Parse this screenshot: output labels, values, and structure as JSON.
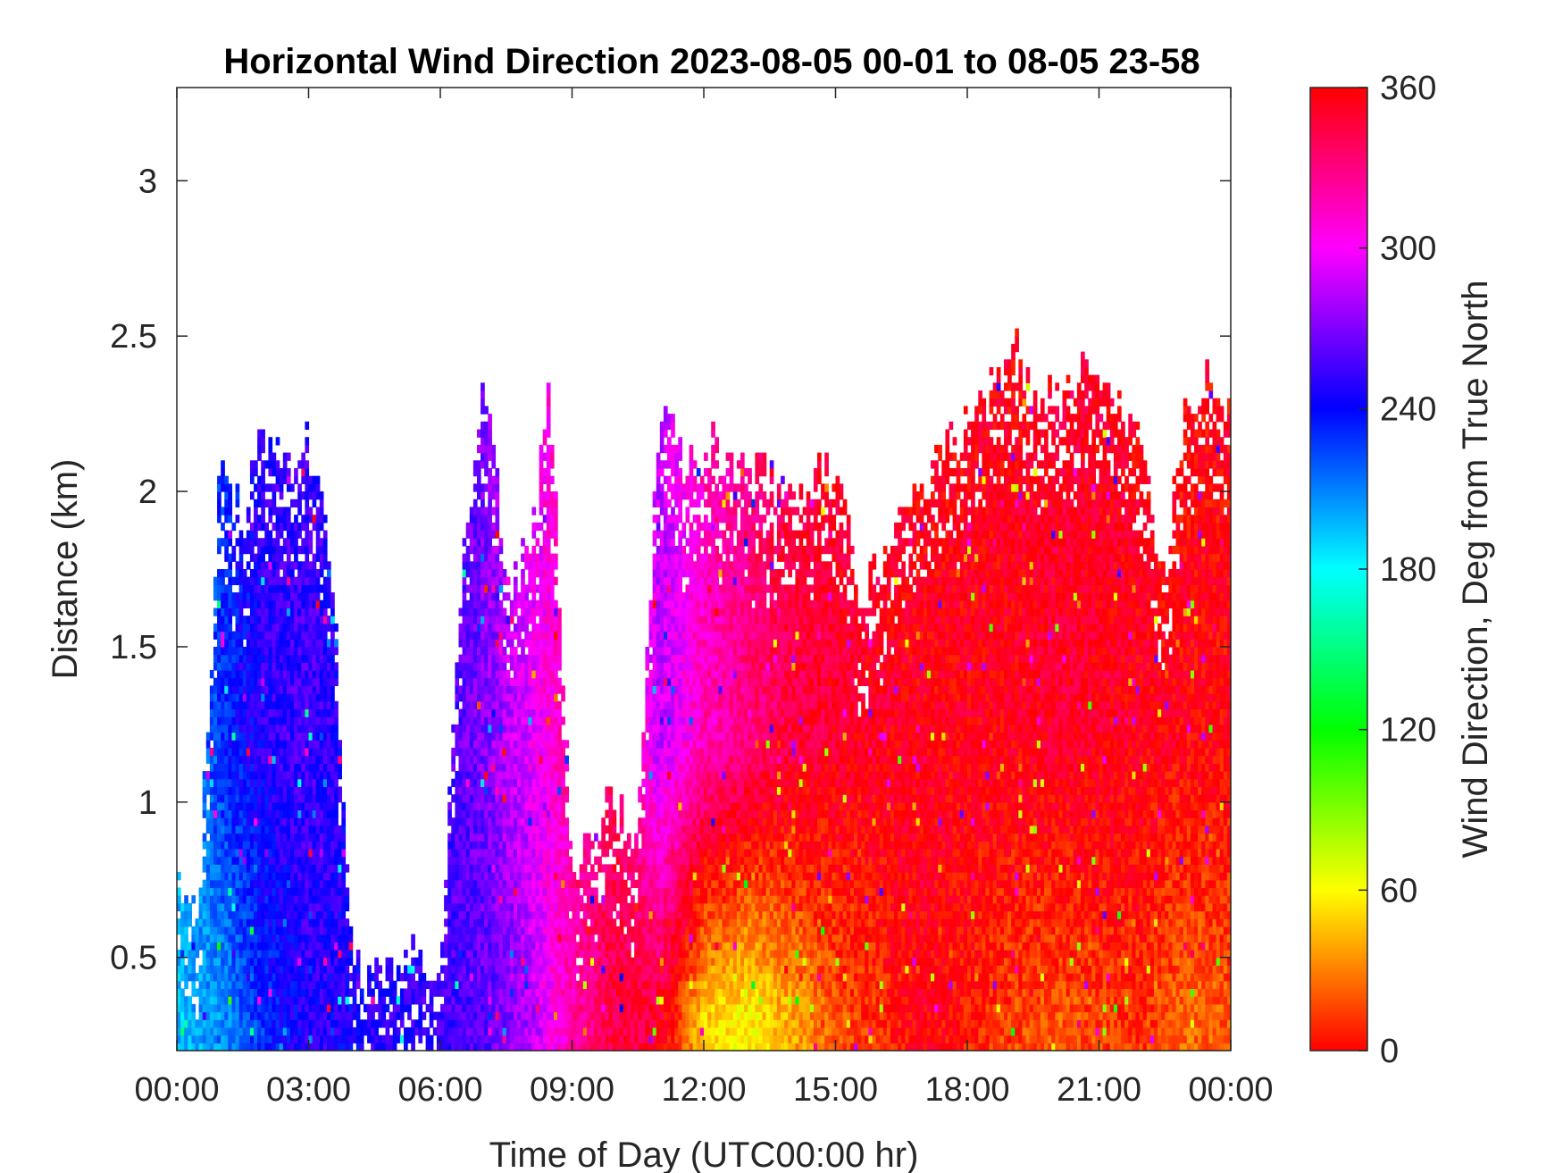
{
  "chart_data": {
    "type": "heatmap",
    "title": "Horizontal Wind Direction 2023-08-05 00-01 to 08-05 23-58",
    "xlabel": "Time of Day (UTC00:00 hr)",
    "ylabel": "Distance (km)",
    "x_ticks": [
      "00:00",
      "03:00",
      "06:00",
      "09:00",
      "12:00",
      "15:00",
      "18:00",
      "21:00",
      "00:00"
    ],
    "x_range_hours": [
      0,
      24
    ],
    "y_ticks": [
      "0.5",
      "1",
      "1.5",
      "2",
      "2.5",
      "3"
    ],
    "y_tick_values": [
      0.5,
      1,
      1.5,
      2,
      2.5,
      3
    ],
    "ylim": [
      0.2,
      3.3
    ],
    "colorbar": {
      "label": "Wind Direction, Deg from True North",
      "ticks": [
        "0",
        "60",
        "120",
        "180",
        "240",
        "300",
        "360"
      ],
      "tick_values": [
        0,
        60,
        120,
        180,
        240,
        300,
        360
      ],
      "range": [
        0,
        360
      ],
      "colormap": [
        "#ff0000",
        "#ffff00",
        "#00ff00",
        "#00ffff",
        "#0000ff",
        "#ff00ff",
        "#ff0000"
      ]
    },
    "series": [
      {
        "variable": "column_top_km_by_hour",
        "hours": [
          0,
          0.5,
          1,
          1.5,
          2,
          2.5,
          3,
          3.5,
          4,
          4.5,
          5,
          5.5,
          6,
          6.5,
          7,
          7.5,
          8,
          8.5,
          9,
          9.5,
          10,
          10.5,
          11,
          11.5,
          12,
          12.5,
          13,
          13.5,
          14,
          14.5,
          15,
          15.5,
          16,
          16.5,
          17,
          17.5,
          18,
          18.5,
          19,
          19.5,
          20,
          20.5,
          21,
          21.5,
          22,
          22.5,
          23,
          23.5,
          24
        ],
        "values": [
          0.75,
          0.65,
          2.1,
          1.9,
          2.2,
          2.1,
          2.15,
          1.85,
          0.5,
          0.45,
          0.48,
          0.5,
          0.5,
          1.75,
          2.4,
          1.75,
          1.75,
          2.3,
          0.8,
          0.9,
          1.0,
          0.9,
          2.3,
          2.1,
          2.15,
          2.1,
          2.05,
          2.05,
          2.0,
          2.05,
          2.1,
          1.7,
          1.7,
          1.95,
          2.05,
          2.1,
          2.25,
          2.3,
          2.5,
          2.3,
          2.3,
          2.35,
          2.4,
          2.3,
          2.1,
          1.75,
          2.3,
          2.35,
          2.2
        ]
      },
      {
        "variable": "dominant_direction_deg_by_hour",
        "hours": [
          0,
          1,
          2,
          3,
          4,
          5,
          6,
          7,
          8,
          9,
          10,
          11,
          12,
          13,
          14,
          15,
          16,
          17,
          18,
          19,
          20,
          21,
          22,
          23,
          24
        ],
        "values": [
          200,
          230,
          250,
          255,
          245,
          250,
          255,
          270,
          295,
          320,
          340,
          285,
          315,
          330,
          345,
          350,
          352,
          355,
          355,
          355,
          350,
          352,
          355,
          358,
          358
        ]
      },
      {
        "variable": "low_level_direction_deg_by_hour",
        "hours": [
          0,
          1,
          2,
          3,
          4,
          5,
          6,
          7,
          8,
          9,
          10,
          11,
          12,
          13,
          14,
          15,
          16,
          17,
          18,
          19,
          20,
          21,
          22,
          23,
          24
        ],
        "values": [
          195,
          205,
          230,
          250,
          245,
          250,
          255,
          260,
          280,
          320,
          345,
          350,
          50,
          60,
          40,
          20,
          10,
          355,
          5,
          15,
          20,
          15,
          10,
          25,
          20
        ]
      }
    ]
  }
}
